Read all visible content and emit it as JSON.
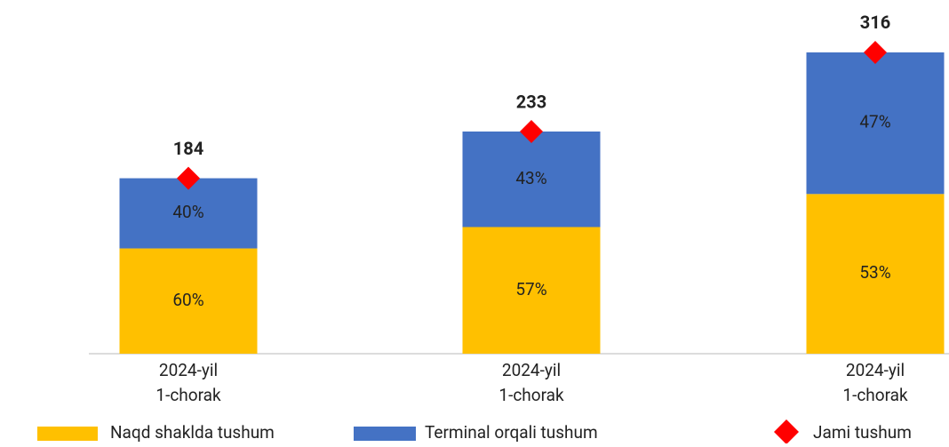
{
  "chart_data": {
    "type": "stacked_bar_percent",
    "categories": [
      [
        "2024-yil",
        "1-chorak"
      ],
      [
        "2024-yil",
        "1-chorak"
      ],
      [
        "2024-yil",
        "1-chorak"
      ]
    ],
    "series": [
      {
        "name": "Naqd shaklda tushum",
        "color": "#ffc000",
        "values": [
          60,
          57,
          53
        ],
        "value_labels": [
          "60%",
          "57%",
          "53%"
        ]
      },
      {
        "name": "Terminal orqali tushum",
        "color": "#4472c4",
        "values": [
          40,
          43,
          47
        ],
        "value_labels": [
          "40%",
          "43%",
          "47%"
        ]
      }
    ],
    "totals": {
      "name": "Jami tushum",
      "color": "#ff0000",
      "values": [
        184,
        233,
        316
      ]
    },
    "ylim": [
      0,
      370
    ]
  }
}
